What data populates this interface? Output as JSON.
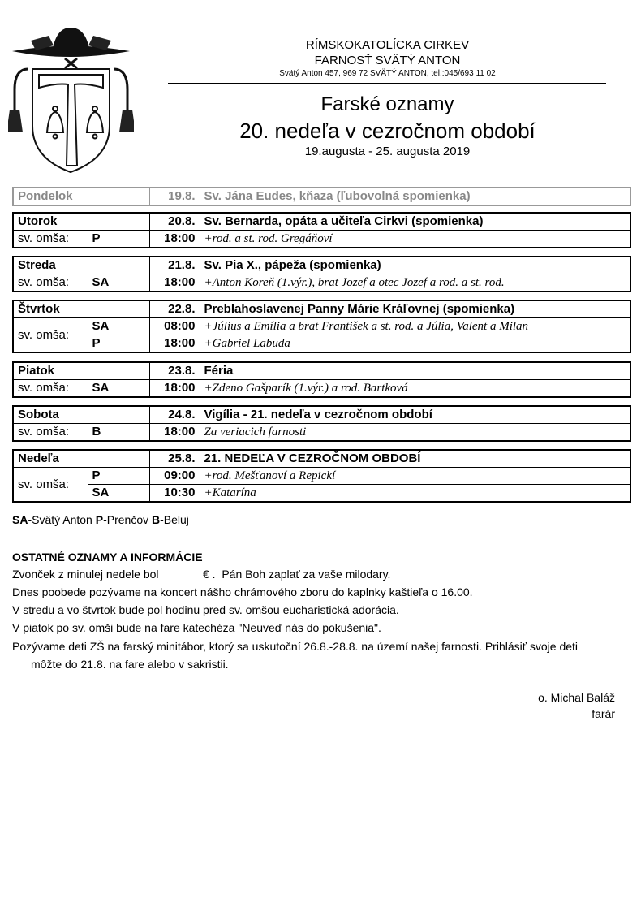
{
  "header": {
    "church": "RÍMSKOKATOLÍCKA CIRKEV",
    "parish": "FARNOSŤ SVÄTÝ ANTON",
    "address": "Svätý Anton 457, 969 72  SVÄTÝ ANTON, tel.:045/693 11 02",
    "title": "Farské oznamy",
    "subtitle": "20. nedeľa v cezročnom období",
    "dates": "19.augusta  - 25. augusta 2019"
  },
  "mass_label": "sv. omša:",
  "days": [
    {
      "day": "Pondelok",
      "date": "19.8.",
      "feast": "Sv. Jána Eudes, kňaza (ľubovolná spomienka)",
      "inactive": true,
      "masses": []
    },
    {
      "day": "Utorok",
      "date": "20.8.",
      "feast": "Sv. Bernarda, opáta a učiteľa Cirkvi (spomienka)",
      "masses": [
        {
          "place": "P",
          "time": "18:00",
          "intention": "+rod. a st. rod. Gregáňoví"
        }
      ]
    },
    {
      "day": "Streda",
      "date": "21.8.",
      "feast": "Sv. Pia X., pápeža (spomienka)",
      "masses": [
        {
          "place": "SA",
          "time": "18:00",
          "intention": "+Anton Koreň (1.výr.), brat Jozef a otec Jozef a rod. a st. rod."
        }
      ]
    },
    {
      "day": "Štvrtok",
      "date": "22.8.",
      "feast": "Preblahoslavenej Panny Márie Kráľovnej (spomienka)",
      "masses": [
        {
          "place": "SA",
          "time": "08:00",
          "intention": "+Július a Emília a brat František a st. rod. a Júlia, Valent a Milan"
        },
        {
          "place": "P",
          "time": "18:00",
          "intention": "+Gabriel Labuda"
        }
      ]
    },
    {
      "day": "Piatok",
      "date": "23.8.",
      "feast": "Féria",
      "masses": [
        {
          "place": "SA",
          "time": "18:00",
          "intention": "+Zdeno Gašparík (1.výr.) a rod. Bartková"
        }
      ]
    },
    {
      "day": "Sobota",
      "date": "24.8.",
      "feast": "Vigília - 21. nedeľa v cezročnom období",
      "masses": [
        {
          "place": "B",
          "time": "18:00",
          "intention": "Za veriacich farnosti"
        }
      ]
    },
    {
      "day": "Nedeľa",
      "date": "25.8.",
      "feast": "21. NEDEĽA V CEZROČNOM OBDOBÍ",
      "masses": [
        {
          "place": "P",
          "time": "09:00",
          "intention": "+rod. Mešťanoví a Repickí"
        },
        {
          "place": "SA",
          "time": "10:30",
          "intention": "+Katarína"
        }
      ]
    }
  ],
  "legend": [
    {
      "code": "SA",
      "name": "-Svätý Anton "
    },
    {
      "code": "P",
      "name": "-Prenčov "
    },
    {
      "code": "B",
      "name": "-Beluj"
    }
  ],
  "info": {
    "heading": "OSTATNÉ OZNAMY A INFORMÁCIE",
    "lines": [
      "Zvonček z minulej nedele bol              € .  Pán Boh zaplať za vaše milodary.",
      "Dnes poobede pozývame na koncert nášho chrámového zboru do kaplnky kaštieľa o 16.00.",
      "V stredu a vo štvrtok  bude pol hodinu pred sv. omšou eucharistická adorácia.",
      "V piatok po sv. omši bude na fare katechéza \"Neuveď nás do pokušenia\".",
      "Pozývame deti ZŠ na farský minitábor, ktorý sa uskutoční 26.8.-28.8. na území našej farnosti. Prihlásiť svoje deti",
      "môžte do 21.8. na fare alebo v sakristii."
    ]
  },
  "signature": {
    "name": "o. Michal Baláž",
    "role": "farár"
  }
}
